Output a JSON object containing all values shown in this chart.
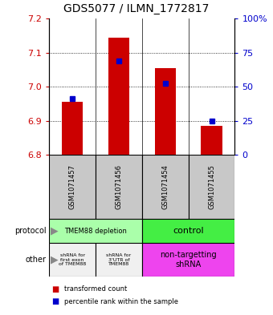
{
  "title": "GDS5077 / ILMN_1772817",
  "samples": [
    "GSM1071457",
    "GSM1071456",
    "GSM1071454",
    "GSM1071455"
  ],
  "transformed_counts": [
    6.955,
    7.145,
    7.055,
    6.885
  ],
  "percentile_ranks": [
    6.965,
    7.075,
    7.01,
    6.9
  ],
  "ylim_left": [
    6.8,
    7.2
  ],
  "ylim_right": [
    0,
    100
  ],
  "left_ticks": [
    6.8,
    6.9,
    7.0,
    7.1,
    7.2
  ],
  "right_ticks": [
    0,
    25,
    50,
    75,
    100
  ],
  "bar_color": "#cc0000",
  "dot_color": "#0000cc",
  "sample_bg_color": "#c8c8c8",
  "protocol_depletion_color": "#aaffaa",
  "protocol_control_color": "#44ee44",
  "other_shrna1_color": "#f0f0f0",
  "other_shrna2_color": "#f0f0f0",
  "other_nontarg_color": "#ee44ee",
  "left_tick_color": "#cc0000",
  "right_tick_color": "#0000cc"
}
